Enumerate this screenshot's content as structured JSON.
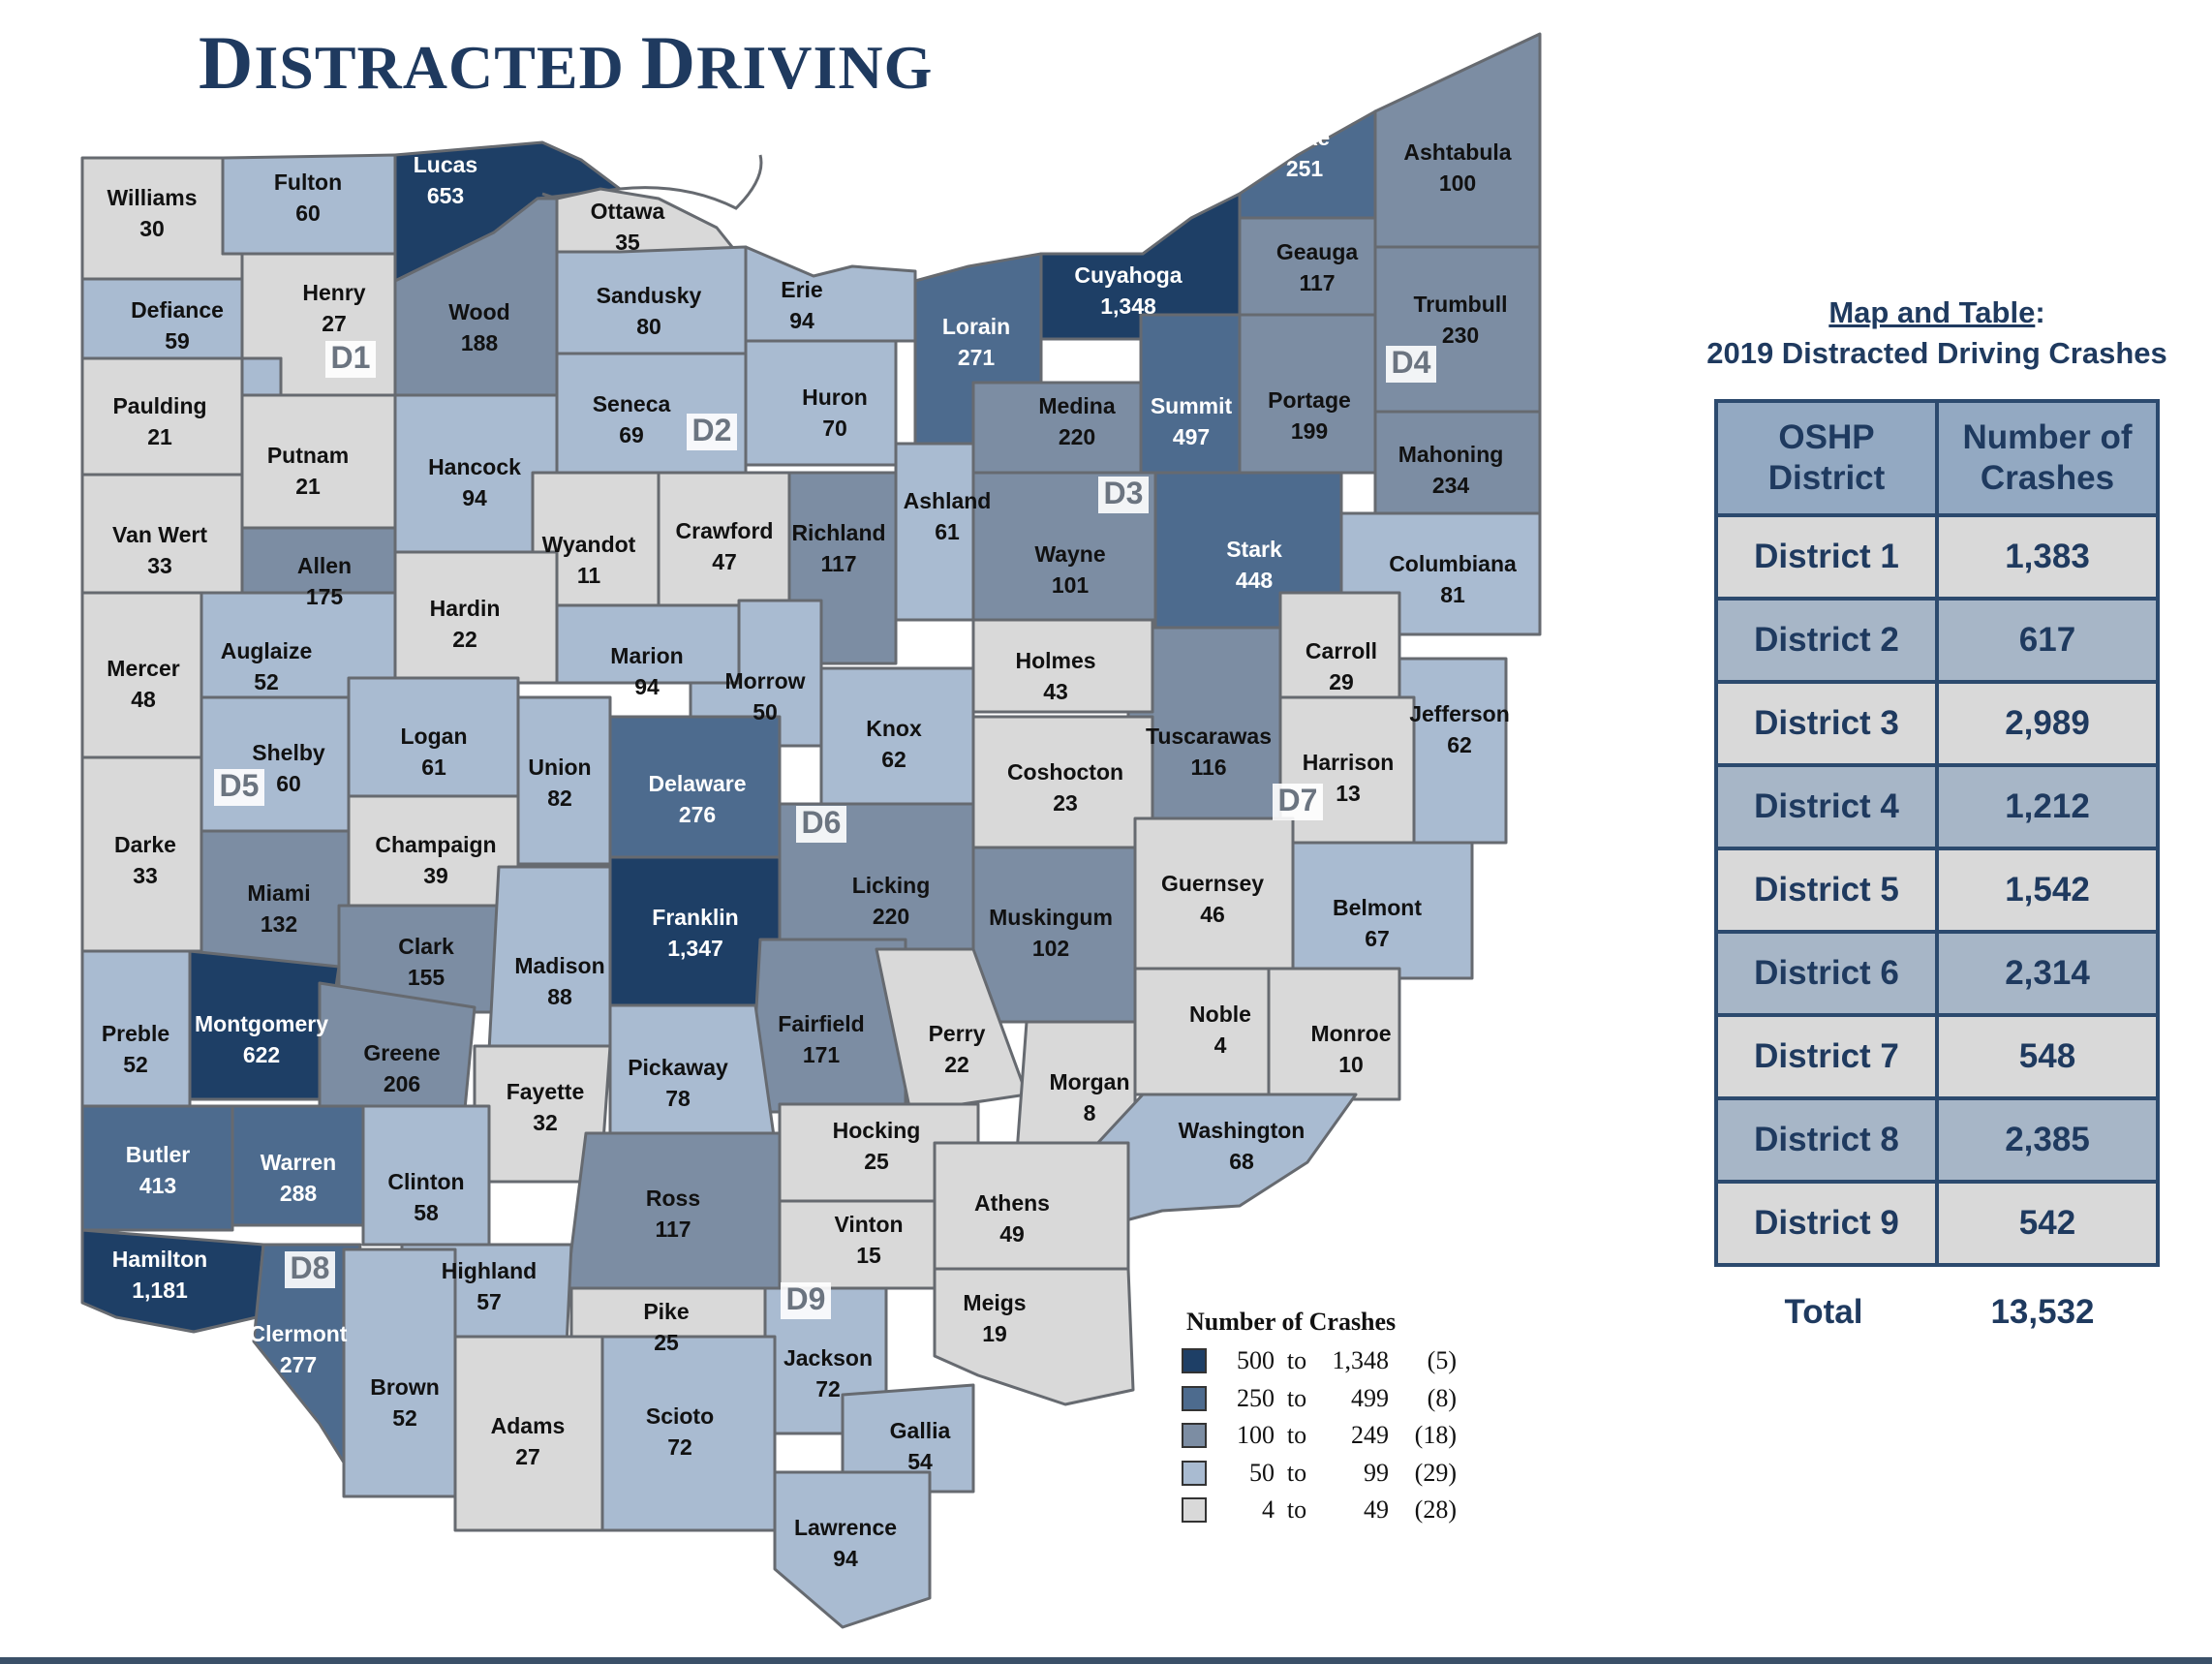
{
  "title": {
    "first": "D",
    "first_rest": "ISTRACTED ",
    "second": "D",
    "second_rest": "RIVING"
  },
  "colors": {
    "bin5": "#1e3f66",
    "bin4": "#4d6b8e",
    "bin3": "#7c8da3",
    "bin2": "#a9bbd1",
    "bin1": "#d9d9d9",
    "border": "#666a70",
    "accent": "#1f3a5f"
  },
  "counties": {
    "williams": {
      "name": "Williams",
      "value": "30"
    },
    "fulton": {
      "name": "Fulton",
      "value": "60"
    },
    "lucas": {
      "name": "Lucas",
      "value": "653"
    },
    "ottawa": {
      "name": "Ottawa",
      "value": "35"
    },
    "henry": {
      "name": "Henry",
      "value": "27"
    },
    "defiance": {
      "name": "Defiance",
      "value": "59"
    },
    "wood": {
      "name": "Wood",
      "value": "188"
    },
    "sandusky": {
      "name": "Sandusky",
      "value": "80"
    },
    "erie": {
      "name": "Erie",
      "value": "94"
    },
    "lorain": {
      "name": "Lorain",
      "value": "271"
    },
    "cuyahoga": {
      "name": "Cuyahoga",
      "value": "1,348"
    },
    "lake": {
      "name": "Lake",
      "value": "251"
    },
    "ashtabula": {
      "name": "Ashtabula",
      "value": "100"
    },
    "geauga": {
      "name": "Geauga",
      "value": "117"
    },
    "trumbull": {
      "name": "Trumbull",
      "value": "230"
    },
    "paulding": {
      "name": "Paulding",
      "value": "21"
    },
    "putnam": {
      "name": "Putnam",
      "value": "21"
    },
    "hancock": {
      "name": "Hancock",
      "value": "94"
    },
    "seneca": {
      "name": "Seneca",
      "value": "69"
    },
    "huron": {
      "name": "Huron",
      "value": "70"
    },
    "medina": {
      "name": "Medina",
      "value": "220"
    },
    "summit": {
      "name": "Summit",
      "value": "497"
    },
    "portage": {
      "name": "Portage",
      "value": "199"
    },
    "mahoning": {
      "name": "Mahoning",
      "value": "234"
    },
    "vanwert": {
      "name": "Van Wert",
      "value": "33"
    },
    "allen": {
      "name": "Allen",
      "value": "175"
    },
    "wyandot": {
      "name": "Wyandot",
      "value": "11"
    },
    "crawford": {
      "name": "Crawford",
      "value": "47"
    },
    "richland": {
      "name": "Richland",
      "value": "117"
    },
    "ashland": {
      "name": "Ashland",
      "value": "61"
    },
    "wayne": {
      "name": "Wayne",
      "value": "101"
    },
    "stark": {
      "name": "Stark",
      "value": "448"
    },
    "columbiana": {
      "name": "Columbiana",
      "value": "81"
    },
    "mercer": {
      "name": "Mercer",
      "value": "48"
    },
    "auglaize": {
      "name": "Auglaize",
      "value": "52"
    },
    "hardin": {
      "name": "Hardin",
      "value": "22"
    },
    "marion": {
      "name": "Marion",
      "value": "94"
    },
    "morrow": {
      "name": "Morrow",
      "value": "50"
    },
    "knox": {
      "name": "Knox",
      "value": "62"
    },
    "holmes": {
      "name": "Holmes",
      "value": "43"
    },
    "tuscarawas": {
      "name": "Tuscarawas",
      "value": "116"
    },
    "carroll": {
      "name": "Carroll",
      "value": "29"
    },
    "jefferson": {
      "name": "Jefferson",
      "value": "62"
    },
    "harrison": {
      "name": "Harrison",
      "value": "13"
    },
    "shelby": {
      "name": "Shelby",
      "value": "60"
    },
    "logan": {
      "name": "Logan",
      "value": "61"
    },
    "union": {
      "name": "Union",
      "value": "82"
    },
    "delaware": {
      "name": "Delaware",
      "value": "276"
    },
    "coshocton": {
      "name": "Coshocton",
      "value": "23"
    },
    "darke": {
      "name": "Darke",
      "value": "33"
    },
    "champaign": {
      "name": "Champaign",
      "value": "39"
    },
    "miami": {
      "name": "Miami",
      "value": "132"
    },
    "licking": {
      "name": "Licking",
      "value": "220"
    },
    "muskingum": {
      "name": "Muskingum",
      "value": "102"
    },
    "guernsey": {
      "name": "Guernsey",
      "value": "46"
    },
    "belmont": {
      "name": "Belmont",
      "value": "67"
    },
    "franklin": {
      "name": "Franklin",
      "value": "1,347"
    },
    "clark": {
      "name": "Clark",
      "value": "155"
    },
    "madison": {
      "name": "Madison",
      "value": "88"
    },
    "preble": {
      "name": "Preble",
      "value": "52"
    },
    "montgomery": {
      "name": "Montgomery",
      "value": "622"
    },
    "greene": {
      "name": "Greene",
      "value": "206"
    },
    "fairfield": {
      "name": "Fairfield",
      "value": "171"
    },
    "perry": {
      "name": "Perry",
      "value": "22"
    },
    "noble": {
      "name": "Noble",
      "value": "4"
    },
    "monroe": {
      "name": "Monroe",
      "value": "10"
    },
    "fayette": {
      "name": "Fayette",
      "value": "32"
    },
    "pickaway": {
      "name": "Pickaway",
      "value": "78"
    },
    "morgan": {
      "name": "Morgan",
      "value": "8"
    },
    "washington": {
      "name": "Washington",
      "value": "68"
    },
    "butler": {
      "name": "Butler",
      "value": "413"
    },
    "warren": {
      "name": "Warren",
      "value": "288"
    },
    "clinton": {
      "name": "Clinton",
      "value": "58"
    },
    "hocking": {
      "name": "Hocking",
      "value": "25"
    },
    "ross": {
      "name": "Ross",
      "value": "117"
    },
    "athens": {
      "name": "Athens",
      "value": "49"
    },
    "vinton": {
      "name": "Vinton",
      "value": "15"
    },
    "hamilton": {
      "name": "Hamilton",
      "value": "1,181"
    },
    "highland": {
      "name": "Highland",
      "value": "57"
    },
    "clermont": {
      "name": "Clermont",
      "value": "277"
    },
    "pike": {
      "name": "Pike",
      "value": "25"
    },
    "jackson": {
      "name": "Jackson",
      "value": "72"
    },
    "meigs": {
      "name": "Meigs",
      "value": "19"
    },
    "brown": {
      "name": "Brown",
      "value": "52"
    },
    "adams": {
      "name": "Adams",
      "value": "27"
    },
    "scioto": {
      "name": "Scioto",
      "value": "72"
    },
    "gallia": {
      "name": "Gallia",
      "value": "54"
    },
    "lawrence": {
      "name": "Lawrence",
      "value": "94"
    }
  },
  "district_labels": [
    "D1",
    "D2",
    "D3",
    "D4",
    "D5",
    "D6",
    "D7",
    "D8",
    "D9"
  ],
  "legend": {
    "title": "Number of Crashes",
    "items": [
      {
        "low": "500",
        "to": "to",
        "high": "1,348",
        "count": "(5)"
      },
      {
        "low": "250",
        "to": "to",
        "high": "499",
        "count": "(8)"
      },
      {
        "low": "100",
        "to": "to",
        "high": "249",
        "count": "(18)"
      },
      {
        "low": "50",
        "to": "to",
        "high": "99",
        "count": "(29)"
      },
      {
        "low": "4",
        "to": "to",
        "high": "49",
        "count": "(28)"
      }
    ]
  },
  "side": {
    "title_link": "Map and Table",
    "title_colon": ":",
    "subtitle": "2019 Distracted Driving Crashes"
  },
  "table": {
    "header_col1_line1": "OSHP",
    "header_col1_line2": "District",
    "header_col2_line1": "Number of",
    "header_col2_line2": "Crashes",
    "rows": [
      {
        "district": "District 1",
        "crashes": "1,383"
      },
      {
        "district": "District 2",
        "crashes": "617"
      },
      {
        "district": "District 3",
        "crashes": "2,989"
      },
      {
        "district": "District 4",
        "crashes": "1,212"
      },
      {
        "district": "District 5",
        "crashes": "1,542"
      },
      {
        "district": "District 6",
        "crashes": "2,314"
      },
      {
        "district": "District 7",
        "crashes": "548"
      },
      {
        "district": "District 8",
        "crashes": "2,385"
      },
      {
        "district": "District 9",
        "crashes": "542"
      }
    ],
    "total_label": "Total",
    "total_value": "13,532"
  }
}
